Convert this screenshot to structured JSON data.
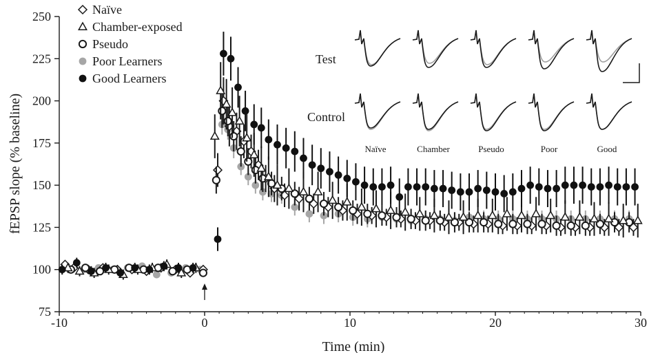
{
  "chart_data": {
    "type": "scatter",
    "xlabel": "Time (min)",
    "ylabel": "fEPSP slope (% baseline)",
    "xlim": [
      -10,
      30
    ],
    "ylim": [
      75,
      250
    ],
    "xticks": [
      -10,
      0,
      10,
      20,
      30
    ],
    "yticks": [
      75,
      100,
      125,
      150,
      175,
      200,
      225,
      250
    ],
    "grid": false,
    "legend_position": "top-left",
    "stimulus_arrow_x": 0,
    "series": [
      {
        "name": "Naïve",
        "marker": "diamond-open",
        "color": "#1a1a1a",
        "x": [
          -9.6,
          -9,
          -8,
          -7,
          -6,
          -5,
          -4,
          -3,
          -2,
          -1,
          -0.1,
          0.9,
          1.3,
          1.7,
          2.2,
          2.7,
          3.2,
          3.7,
          4.2,
          4.8,
          5.5,
          6.5,
          7.5,
          8.5,
          9.5,
          10.5,
          11.5,
          12.5,
          13.5,
          14.5,
          15.5,
          16.5,
          17.5,
          18.5,
          19.5,
          20.5,
          21.5,
          22.5,
          23.5,
          24.5,
          25.5,
          26.5,
          27.5,
          28.5,
          29.5
        ],
        "y": [
          103,
          101,
          100,
          101,
          100,
          100,
          99,
          101,
          100,
          98,
          100,
          159,
          200,
          185,
          182,
          176,
          170,
          162,
          154,
          148,
          144,
          142,
          139,
          137,
          135,
          133,
          132,
          131,
          130,
          129,
          129,
          128,
          128,
          127,
          127,
          126,
          126,
          126,
          126,
          125,
          125,
          125,
          125,
          125,
          125
        ],
        "err": [
          2,
          2,
          2,
          2,
          2,
          2,
          2,
          2,
          2,
          2,
          2,
          10,
          14,
          12,
          11,
          10,
          10,
          9,
          8,
          8,
          7,
          7,
          6,
          6,
          6,
          6,
          5,
          5,
          5,
          5,
          5,
          5,
          5,
          5,
          5,
          5,
          5,
          5,
          5,
          5,
          5,
          5,
          5,
          5,
          5
        ]
      },
      {
        "name": "Chamber-exposed",
        "marker": "triangle-open",
        "color": "#1a1a1a",
        "x": [
          -9.4,
          -8.6,
          -7.6,
          -6.6,
          -5.6,
          -4.6,
          -3.6,
          -2.6,
          -1.6,
          -0.6,
          0.7,
          1.1,
          1.5,
          1.9,
          2.4,
          2.9,
          3.4,
          3.9,
          4.4,
          5,
          5.8,
          6.8,
          7.8,
          8.8,
          9.8,
          10.8,
          11.8,
          12.8,
          13.8,
          14.8,
          15.8,
          16.8,
          17.8,
          18.8,
          19.8,
          20.8,
          21.8,
          22.8,
          23.8,
          24.8,
          25.8,
          26.8,
          27.8,
          28.8,
          29.8
        ],
        "y": [
          101,
          99,
          98,
          100,
          97,
          100,
          101,
          103,
          98,
          101,
          179,
          206,
          198,
          193,
          188,
          178,
          168,
          160,
          155,
          150,
          148,
          146,
          146,
          141,
          140,
          137,
          136,
          135,
          134,
          133,
          132,
          131,
          131,
          132,
          132,
          133,
          132,
          133,
          132,
          131,
          131,
          130,
          130,
          129,
          129
        ],
        "err": [
          3,
          3,
          3,
          3,
          3,
          3,
          3,
          3,
          3,
          3,
          13,
          17,
          15,
          15,
          15,
          14,
          13,
          13,
          12,
          12,
          12,
          12,
          12,
          11,
          11,
          11,
          11,
          11,
          11,
          10,
          10,
          10,
          10,
          10,
          10,
          10,
          10,
          10,
          10,
          10,
          10,
          10,
          10,
          10,
          10
        ]
      },
      {
        "name": "Pseudo",
        "marker": "circle-open",
        "color": "#1a1a1a",
        "x": [
          -9.2,
          -8.2,
          -7.2,
          -6.2,
          -5.2,
          -4.2,
          -3.2,
          -2.2,
          -1.2,
          -0.1,
          0.8,
          1.2,
          1.6,
          2,
          2.5,
          3,
          3.5,
          4,
          4.6,
          5.3,
          6.2,
          7.2,
          8.2,
          9.2,
          10.2,
          11.2,
          12.2,
          13.2,
          14.2,
          15.2,
          16.2,
          17.2,
          18.2,
          19.2,
          20.2,
          21.2,
          22.2,
          23.2,
          24.2,
          25.2,
          26.2,
          27.2,
          28.2,
          29.2
        ],
        "y": [
          100,
          101,
          99,
          100,
          101,
          100,
          101,
          99,
          100,
          98,
          153,
          194,
          188,
          179,
          170,
          164,
          159,
          154,
          151,
          148,
          145,
          142,
          139,
          137,
          135,
          133,
          132,
          131,
          130,
          129,
          129,
          128,
          128,
          128,
          127,
          127,
          127,
          127,
          126,
          126,
          126,
          127,
          128,
          128
        ],
        "err": [
          2,
          2,
          2,
          2,
          2,
          2,
          2,
          2,
          2,
          2,
          8,
          10,
          9,
          9,
          9,
          8,
          8,
          8,
          7,
          7,
          7,
          7,
          7,
          6,
          6,
          6,
          6,
          6,
          6,
          6,
          6,
          6,
          6,
          6,
          6,
          6,
          6,
          6,
          6,
          6,
          6,
          6,
          6,
          6
        ]
      },
      {
        "name": "Poor Learners",
        "marker": "circle-filled",
        "color": "#a6a6a6",
        "x": [
          -9.3,
          -8.3,
          -7.3,
          -6.3,
          -5.3,
          -4.3,
          -3.3,
          -2.3,
          -1.3,
          -0.3,
          1.2,
          1.6,
          2,
          2.5,
          3,
          3.5,
          4,
          4.6,
          5.3,
          6.2,
          7.2,
          8.2,
          9.2,
          10.2,
          11.2,
          12.2,
          13.2,
          14.2,
          15.2,
          16.2,
          17.2,
          18.2,
          19.2,
          20.2,
          21.2,
          22.2,
          23.2,
          24.2,
          25.2,
          26.2,
          27.2,
          28.2,
          29.2
        ],
        "y": [
          100,
          100,
          101,
          100,
          101,
          102,
          97,
          98,
          101,
          100,
          186,
          183,
          172,
          161,
          155,
          150,
          146,
          145,
          144,
          137,
          133,
          132,
          133,
          131,
          130,
          131,
          130,
          129,
          130,
          130,
          129,
          131,
          130,
          130,
          130,
          130,
          130,
          130,
          130,
          130,
          130,
          130,
          130
        ],
        "err": [
          2,
          2,
          2,
          2,
          2,
          2,
          2,
          2,
          2,
          2,
          6,
          6,
          6,
          5,
          5,
          5,
          5,
          5,
          5,
          5,
          5,
          5,
          5,
          5,
          5,
          5,
          5,
          5,
          5,
          5,
          5,
          5,
          5,
          5,
          5,
          5,
          5,
          5,
          5,
          5,
          5,
          5,
          5
        ]
      },
      {
        "name": "Good Learners",
        "marker": "circle-filled",
        "color": "#111111",
        "x": [
          -9.8,
          -8.8,
          -7.8,
          -6.8,
          -5.8,
          -4.8,
          -3.8,
          -2.8,
          -1.8,
          -0.8,
          0.9,
          1.3,
          1.8,
          2.3,
          2.8,
          3.4,
          3.9,
          4.4,
          5,
          5.6,
          6.2,
          6.8,
          7.4,
          8,
          8.6,
          9.2,
          9.8,
          10.4,
          11,
          11.6,
          12.2,
          12.8,
          13.4,
          14,
          14.6,
          15.2,
          15.8,
          16.4,
          17,
          17.6,
          18.2,
          18.8,
          19.4,
          20,
          20.6,
          21.2,
          21.8,
          22.4,
          23,
          23.6,
          24.2,
          24.8,
          25.4,
          26,
          26.6,
          27.2,
          27.8,
          28.4,
          29,
          29.6
        ],
        "y": [
          100,
          104,
          99,
          101,
          98,
          101,
          100,
          102,
          101,
          101,
          118,
          228,
          225,
          208,
          194,
          186,
          184,
          177,
          174,
          172,
          170,
          166,
          162,
          160,
          158,
          156,
          154,
          152,
          150,
          149,
          149,
          150,
          143,
          149,
          149,
          149,
          148,
          148,
          147,
          146,
          146,
          148,
          147,
          146,
          145,
          146,
          148,
          150,
          149,
          148,
          148,
          150,
          150,
          150,
          149,
          149,
          150,
          149,
          149,
          149
        ],
        "err": [
          3,
          3,
          3,
          3,
          3,
          3,
          3,
          3,
          3,
          3,
          7,
          13,
          13,
          12,
          12,
          12,
          12,
          12,
          12,
          12,
          12,
          12,
          12,
          12,
          12,
          11,
          11,
          11,
          11,
          11,
          11,
          11,
          11,
          11,
          11,
          11,
          11,
          11,
          11,
          11,
          11,
          11,
          11,
          11,
          11,
          11,
          11,
          11,
          11,
          11,
          11,
          11,
          11,
          11,
          11,
          11,
          11,
          11,
          11,
          11
        ]
      }
    ],
    "inset": {
      "row_labels": [
        "Test",
        "Control"
      ],
      "column_labels": [
        "Naïve",
        "Chamber",
        "Pseudo",
        "Poor",
        "Good"
      ],
      "trace_colors": [
        "#1a1a1a",
        "#9e9e9e"
      ]
    }
  }
}
